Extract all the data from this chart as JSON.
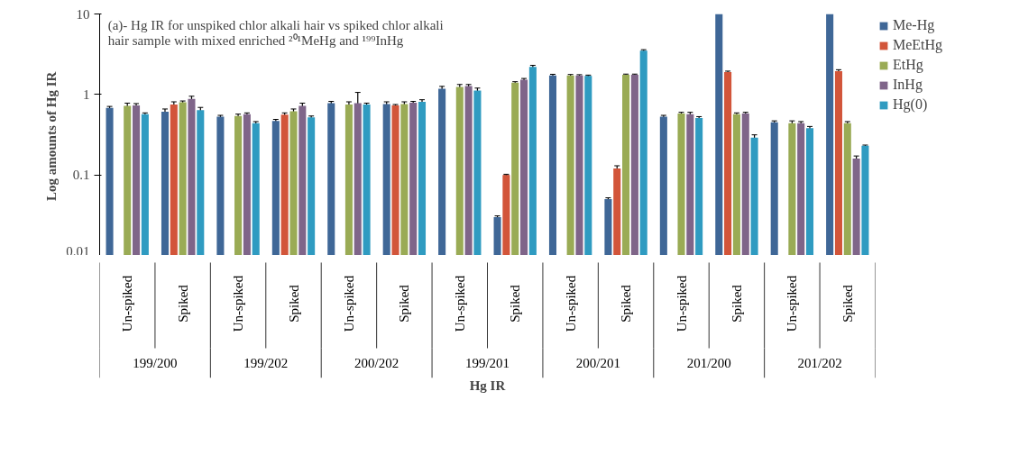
{
  "chart_data": {
    "type": "bar",
    "title": "(a)- Hg IR for unspiked chlor alkali hair vs spiked chlor alkali hair sample with mixed enriched ²⁰¹MeHg and ¹⁹⁹InHg",
    "xlabel": "Hg IR",
    "ylabel": "Log  amounts of Hg IR",
    "categories": [
      "Un-spiked",
      "Spiked",
      "Un-spiked",
      "Spiked",
      "Un-spiked",
      "Spiked",
      "Un-spiked",
      "Spiked",
      "Un-spiked",
      "Spiked",
      "Un-spiked",
      "Spiked",
      "Un-spiked",
      "Spiked"
    ],
    "annotations": [
      "199/200",
      "199/202",
      "200/202",
      "199/201",
      "200/201",
      "201/200",
      "201/202"
    ],
    "series": [
      {
        "name": "Me-Hg",
        "color": "#3f6797",
        "values": [
          0.68,
          0.61,
          0.53,
          0.47,
          0.78,
          0.76,
          1.18,
          0.03,
          1.72,
          0.05,
          0.53,
          10,
          0.45,
          10
        ],
        "errors": [
          0.03,
          0.05,
          0.02,
          0.02,
          0.04,
          0.05,
          0.08,
          0.001,
          0.06,
          0.002,
          0.02,
          null,
          0.02,
          null
        ]
      },
      {
        "name": "MeEtHg",
        "color": "#d2553a",
        "values": [
          null,
          0.75,
          null,
          0.56,
          null,
          0.73,
          null,
          0.1,
          null,
          0.12,
          null,
          1.9,
          null,
          1.95
        ],
        "errors": [
          null,
          0.06,
          null,
          0.03,
          null,
          0.02,
          null,
          0.002,
          null,
          0.01,
          null,
          0.05,
          null,
          0.08
        ]
      },
      {
        "name": "EtHg",
        "color": "#9aab55",
        "values": [
          0.72,
          0.8,
          0.54,
          0.62,
          0.75,
          0.76,
          1.24,
          1.4,
          1.72,
          1.75,
          0.58,
          0.57,
          0.44,
          0.44
        ],
        "errors": [
          0.06,
          0.03,
          0.03,
          0.04,
          0.06,
          0.05,
          0.09,
          0.04,
          0.05,
          0.04,
          0.02,
          0.02,
          0.03,
          0.02
        ]
      },
      {
        "name": "InHg",
        "color": "#7f6589",
        "values": [
          0.73,
          0.88,
          0.57,
          0.72,
          0.78,
          0.79,
          1.27,
          1.52,
          1.72,
          1.75,
          0.57,
          0.58,
          0.44,
          0.16
        ],
        "errors": [
          0.04,
          0.07,
          0.02,
          0.06,
          0.28,
          0.03,
          0.06,
          0.06,
          0.04,
          0.04,
          0.03,
          0.02,
          0.02,
          0.012
        ]
      },
      {
        "name": "Hg(0)",
        "color": "#2f9bc1",
        "values": [
          0.57,
          0.64,
          0.44,
          0.52,
          0.75,
          0.81,
          1.12,
          2.2,
          1.7,
          3.5,
          0.51,
          0.29,
          0.38,
          0.23
        ],
        "errors": [
          0.02,
          0.05,
          0.02,
          0.02,
          0.03,
          0.05,
          0.08,
          0.1,
          0.04,
          0.1,
          0.02,
          0.025,
          0.02,
          0.005
        ]
      }
    ],
    "ylim": [
      0.01,
      10
    ],
    "yticks": [
      0.01,
      0.1,
      1,
      10
    ],
    "log": true,
    "grid": false,
    "legend": "top right"
  }
}
